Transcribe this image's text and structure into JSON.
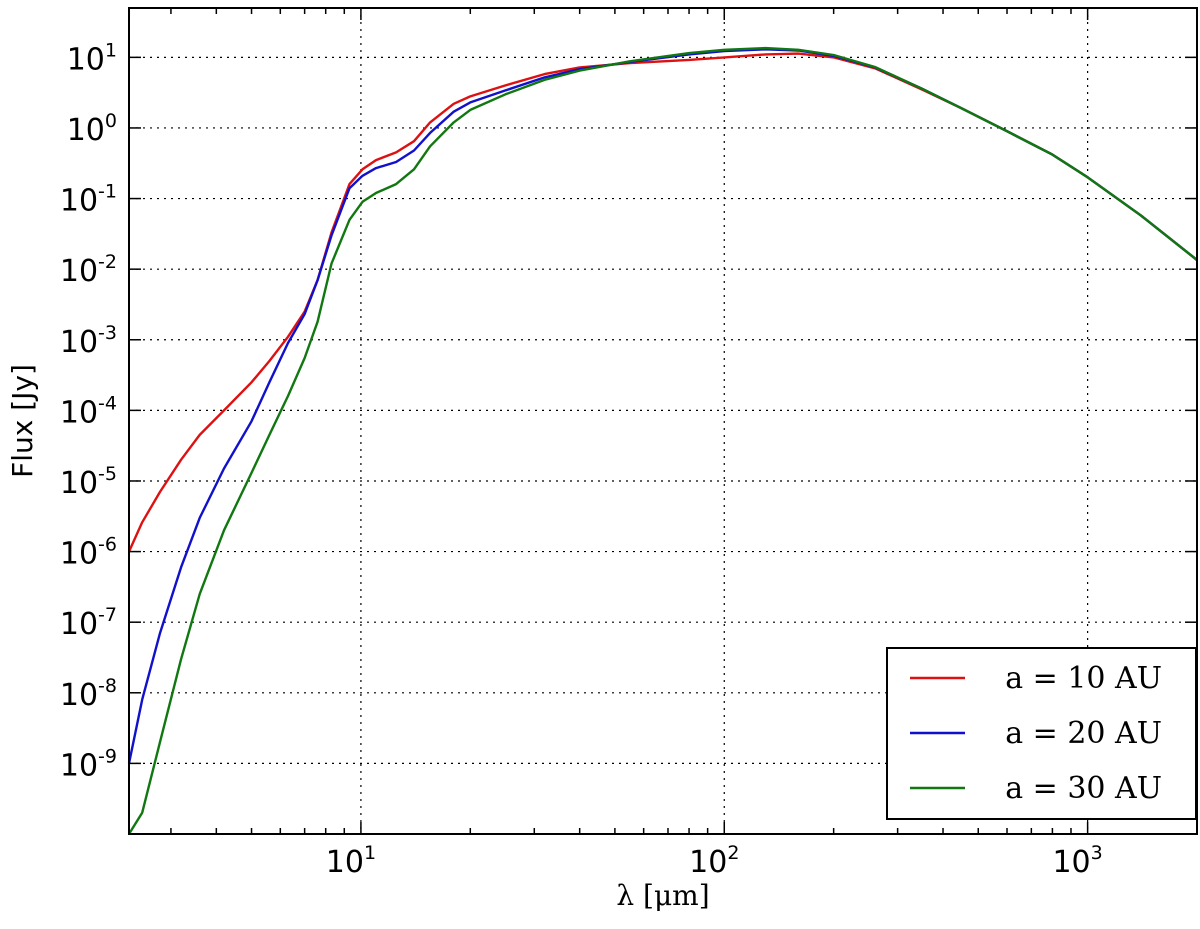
{
  "chart_data": {
    "type": "line",
    "xscale": "log",
    "yscale": "log",
    "xlim": [
      2.3,
      2000
    ],
    "ylim": [
      1e-10,
      50
    ],
    "xlabel": "λ [μm]",
    "ylabel": "Flux [Jy]",
    "grid": true,
    "legend_position": "bottom-right",
    "x_ticks": [
      {
        "value": 10,
        "base": "10",
        "exp": "1"
      },
      {
        "value": 100,
        "base": "10",
        "exp": "2"
      },
      {
        "value": 1000,
        "base": "10",
        "exp": "3"
      }
    ],
    "y_ticks": [
      {
        "value": 10.0,
        "base": "10",
        "exp": "1"
      },
      {
        "value": 1.0,
        "base": "10",
        "exp": "0"
      },
      {
        "value": 0.1,
        "base": "10",
        "exp": "-1"
      },
      {
        "value": 0.01,
        "base": "10",
        "exp": "-2"
      },
      {
        "value": 0.001,
        "base": "10",
        "exp": "-3"
      },
      {
        "value": 0.0001,
        "base": "10",
        "exp": "-4"
      },
      {
        "value": 1e-05,
        "base": "10",
        "exp": "-5"
      },
      {
        "value": 1e-06,
        "base": "10",
        "exp": "-6"
      },
      {
        "value": 1e-07,
        "base": "10",
        "exp": "-7"
      },
      {
        "value": 1e-08,
        "base": "10",
        "exp": "-8"
      },
      {
        "value": 1e-09,
        "base": "10",
        "exp": "-9"
      }
    ],
    "series": [
      {
        "name": "a = 10 AU",
        "color": "#dd1111",
        "points": [
          [
            2.3,
            1e-06
          ],
          [
            2.5,
            2.6e-06
          ],
          [
            2.8,
            7e-06
          ],
          [
            3.2,
            2e-05
          ],
          [
            3.6,
            4.5e-05
          ],
          [
            4.2,
            0.0001
          ],
          [
            5.0,
            0.00025
          ],
          [
            5.6,
            0.0005
          ],
          [
            6.3,
            0.0011
          ],
          [
            7.0,
            0.0025
          ],
          [
            7.6,
            0.007
          ],
          [
            8.3,
            0.033
          ],
          [
            9.3,
            0.16
          ],
          [
            10.1,
            0.26
          ],
          [
            11,
            0.35
          ],
          [
            12.5,
            0.45
          ],
          [
            14,
            0.65
          ],
          [
            15.5,
            1.2
          ],
          [
            18,
            2.2
          ],
          [
            20,
            2.8
          ],
          [
            25,
            4
          ],
          [
            32,
            5.8
          ],
          [
            40,
            7.2
          ],
          [
            55,
            8.3
          ],
          [
            80,
            9.2
          ],
          [
            100,
            10
          ],
          [
            130,
            11
          ],
          [
            160,
            11.3
          ],
          [
            200,
            10
          ],
          [
            260,
            7
          ],
          [
            350,
            3.5
          ],
          [
            450,
            1.9
          ],
          [
            600,
            0.9
          ],
          [
            800,
            0.42
          ],
          [
            1000,
            0.2
          ],
          [
            1400,
            0.058
          ],
          [
            2000,
            0.0135
          ]
        ]
      },
      {
        "name": "a = 20 AU",
        "color": "#1111cc",
        "points": [
          [
            2.3,
            1e-09
          ],
          [
            2.5,
            8e-09
          ],
          [
            2.8,
            7e-08
          ],
          [
            3.2,
            6e-07
          ],
          [
            3.6,
            3e-06
          ],
          [
            4.2,
            1.5e-05
          ],
          [
            5.0,
            7e-05
          ],
          [
            5.6,
            0.00025
          ],
          [
            6.3,
            0.0009
          ],
          [
            7.0,
            0.0023
          ],
          [
            7.6,
            0.007
          ],
          [
            8.3,
            0.03
          ],
          [
            9.3,
            0.14
          ],
          [
            10.1,
            0.21
          ],
          [
            11,
            0.27
          ],
          [
            12.5,
            0.33
          ],
          [
            14,
            0.48
          ],
          [
            15.5,
            0.85
          ],
          [
            18,
            1.7
          ],
          [
            20,
            2.3
          ],
          [
            25,
            3.4
          ],
          [
            32,
            5.2
          ],
          [
            40,
            6.8
          ],
          [
            55,
            8.6
          ],
          [
            80,
            11
          ],
          [
            100,
            12.3
          ],
          [
            130,
            13
          ],
          [
            160,
            12.5
          ],
          [
            200,
            10.5
          ],
          [
            260,
            7.2
          ],
          [
            350,
            3.6
          ],
          [
            450,
            1.9
          ],
          [
            600,
            0.9
          ],
          [
            800,
            0.42
          ],
          [
            1000,
            0.2
          ],
          [
            1400,
            0.058
          ],
          [
            2000,
            0.0135
          ]
        ]
      },
      {
        "name": "a = 30 AU",
        "color": "#117711",
        "points": [
          [
            2.3,
            1e-10
          ],
          [
            2.5,
            2e-10
          ],
          [
            2.8,
            2e-09
          ],
          [
            3.2,
            3e-08
          ],
          [
            3.6,
            2.5e-07
          ],
          [
            4.2,
            2e-06
          ],
          [
            5.0,
            1.3e-05
          ],
          [
            5.6,
            4.5e-05
          ],
          [
            6.3,
            0.00016
          ],
          [
            7.0,
            0.00055
          ],
          [
            7.6,
            0.0018
          ],
          [
            8.3,
            0.012
          ],
          [
            9.3,
            0.05
          ],
          [
            10.1,
            0.09
          ],
          [
            11,
            0.12
          ],
          [
            12.5,
            0.16
          ],
          [
            14,
            0.26
          ],
          [
            15.5,
            0.55
          ],
          [
            18,
            1.2
          ],
          [
            20,
            1.8
          ],
          [
            25,
            3
          ],
          [
            32,
            4.8
          ],
          [
            40,
            6.5
          ],
          [
            55,
            8.8
          ],
          [
            80,
            11.5
          ],
          [
            100,
            12.8
          ],
          [
            130,
            13.5
          ],
          [
            160,
            12.8
          ],
          [
            200,
            10.8
          ],
          [
            260,
            7.3
          ],
          [
            350,
            3.6
          ],
          [
            450,
            1.9
          ],
          [
            600,
            0.9
          ],
          [
            800,
            0.42
          ],
          [
            1000,
            0.2
          ],
          [
            1400,
            0.058
          ],
          [
            2000,
            0.0135
          ]
        ]
      }
    ]
  }
}
